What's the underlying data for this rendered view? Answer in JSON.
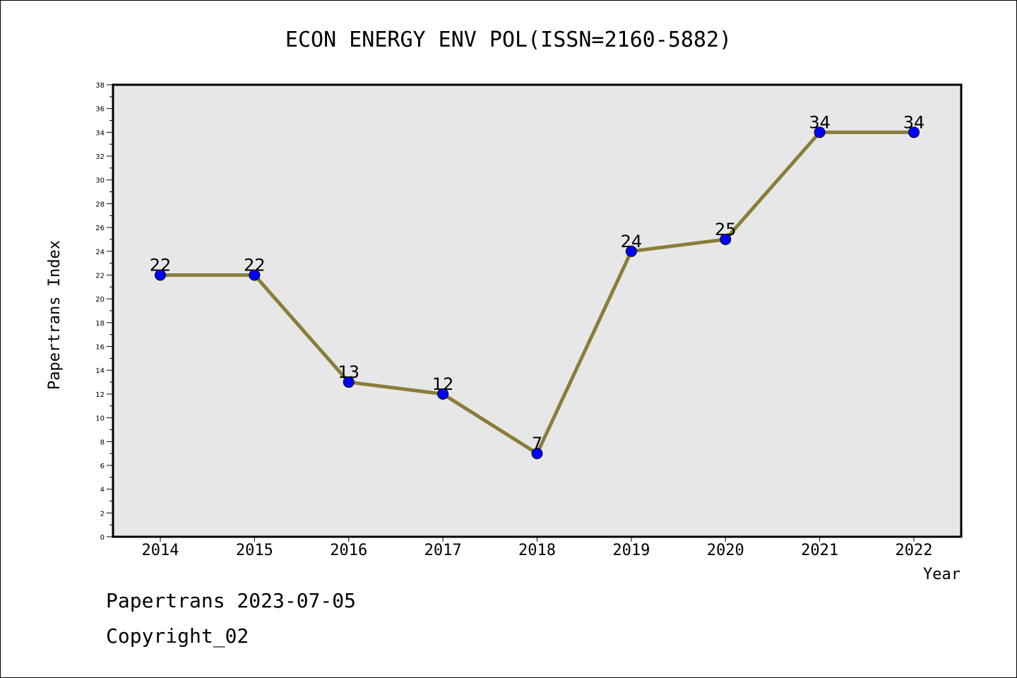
{
  "footer": {
    "line1": "Papertrans 2023-07-05",
    "line2": "Copyright_02"
  },
  "chart_data": {
    "type": "line",
    "title": "ECON ENERGY ENV POL(ISSN=2160-5882)",
    "xlabel": "Year",
    "ylabel": "Papertrans Index",
    "categories": [
      "2014",
      "2015",
      "2016",
      "2017",
      "2018",
      "2019",
      "2020",
      "2021",
      "2022"
    ],
    "values": [
      22,
      22,
      13,
      12,
      7,
      24,
      25,
      34,
      34
    ],
    "ylim": [
      0,
      38
    ],
    "y_major_step": 2,
    "grid": false,
    "data_labels": true,
    "colors": {
      "line": "#8b7d3a",
      "marker": "#0000ff",
      "plot_background": "#e7e7e7"
    }
  }
}
